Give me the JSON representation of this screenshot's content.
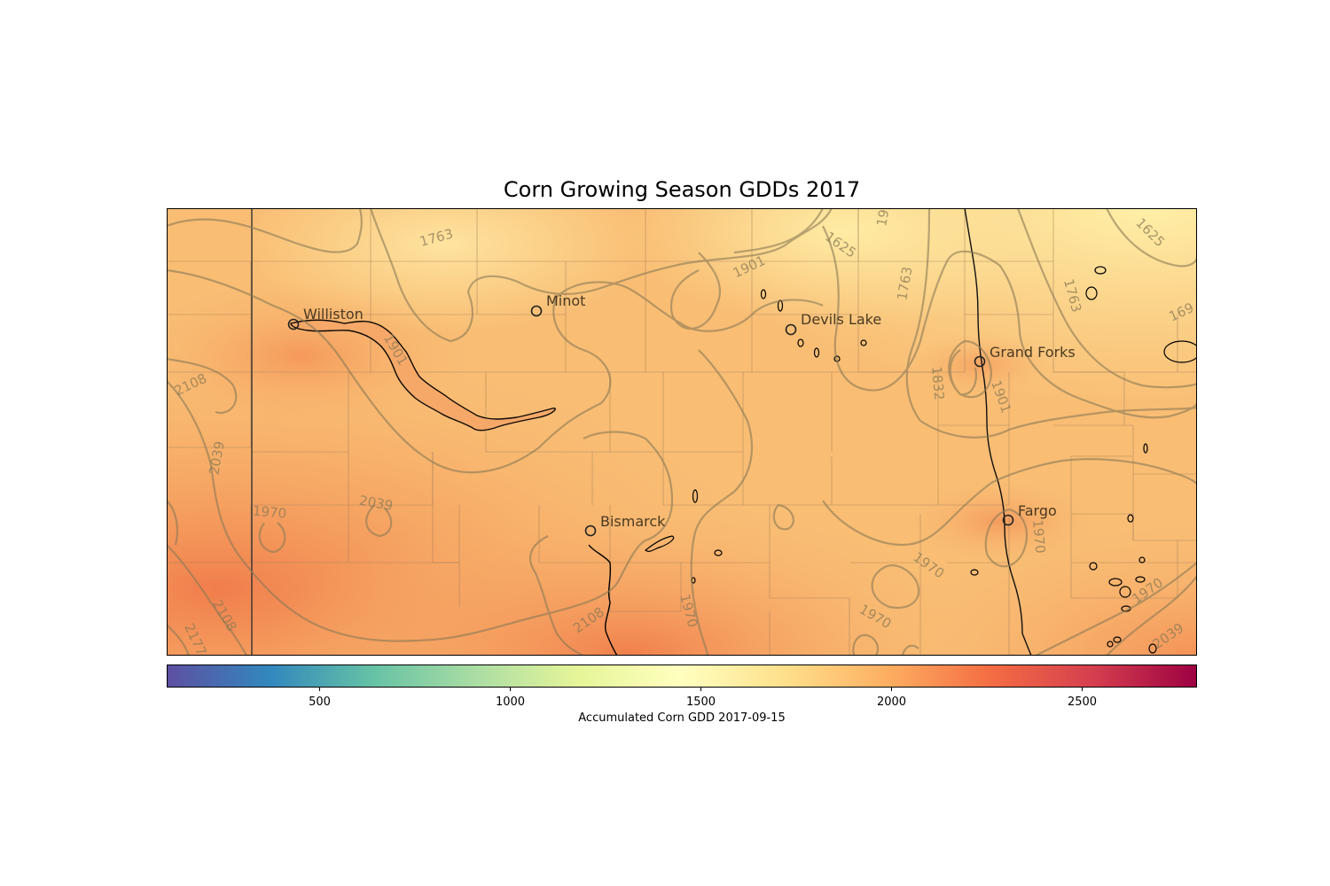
{
  "title": "Corn Growing Season GDDs 2017",
  "colorbar": {
    "label": "Accumulated Corn GDD 2017-09-15",
    "range": [
      100,
      2800
    ],
    "ticks": [
      500,
      1000,
      1500,
      2000,
      2500
    ],
    "colormap": "Spectral_r",
    "colors": [
      "#5e4fa2",
      "#3288bd",
      "#66c2a5",
      "#abdda4",
      "#e6f598",
      "#ffffbf",
      "#fee08b",
      "#fdae61",
      "#f46d43",
      "#d53e4f",
      "#9e0142"
    ]
  },
  "cities": [
    {
      "name": "Williston"
    },
    {
      "name": "Minot"
    },
    {
      "name": "Devils Lake"
    },
    {
      "name": "Grand Forks"
    },
    {
      "name": "Bismarck"
    },
    {
      "name": "Fargo"
    }
  ],
  "contour_labels": [
    "1763",
    "19",
    "1625",
    "1625",
    "1901",
    "1763",
    "1763",
    "169",
    "1901",
    "2108",
    "1832",
    "1901",
    "2039",
    "1970",
    "2039",
    "1970",
    "1970",
    "1970",
    "2108",
    "2177",
    "2108",
    "1970",
    "1970",
    "2039",
    "1970"
  ],
  "colors": {
    "contour": "#8a7a55",
    "boundary": "#000000",
    "county": "#9a7a55"
  }
}
